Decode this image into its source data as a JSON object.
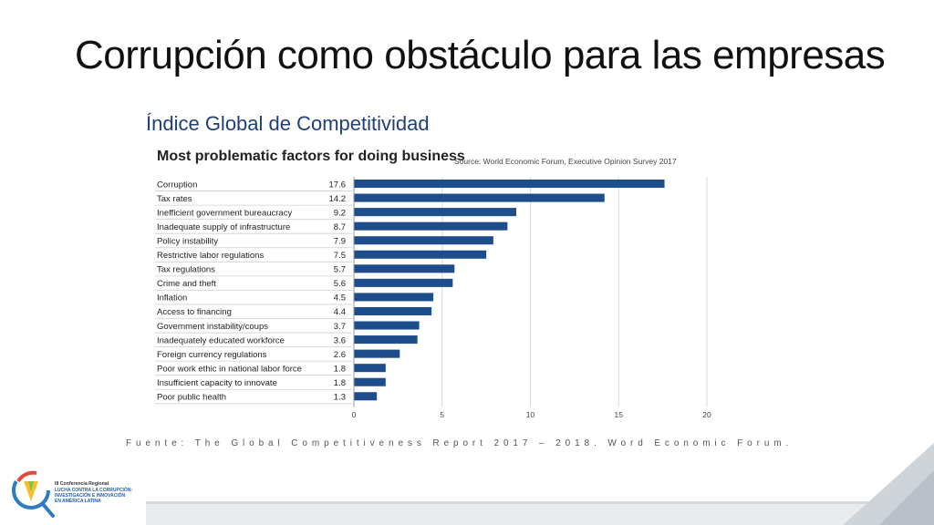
{
  "slide": {
    "title": "Corrupción como obstáculo para las empresas",
    "subtitle": "Índice Global de Competitividad",
    "figure_title": "Most problematic factors for doing business",
    "figure_source": "Source: World Economic Forum, Executive Opinion Survey 2017",
    "source_line": "Fuente: The Global Competitiveness Report 2017 – 2018. Word Economic Forum."
  },
  "logo": {
    "lines": [
      "III Conferencia Regional",
      "LUCHA CONTRA LA CORRUPCIÓN:",
      "INVESTIGACIÓN E INNOVACIÓN",
      "EN AMÉRICA LATINA"
    ]
  },
  "colors": {
    "bar": "#1e4d8c",
    "accent_blue": "#1f3f78",
    "grid": "#d9d9d9"
  },
  "chart_data": {
    "type": "bar",
    "orientation": "horizontal",
    "categories": [
      "Corruption",
      "Tax rates",
      "Inefficient government bureaucracy",
      "Inadequate supply of infrastructure",
      "Policy instability",
      "Restrictive labor regulations",
      "Tax regulations",
      "Crime and theft",
      "Inflation",
      "Access to financing",
      "Government instability/coups",
      "Inadequately educated workforce",
      "Foreign currency regulations",
      "Poor work ethic in national labor force",
      "Insufficient capacity to innovate",
      "Poor public health"
    ],
    "values": [
      17.6,
      14.2,
      9.2,
      8.7,
      7.9,
      7.5,
      5.7,
      5.6,
      4.5,
      4.4,
      3.7,
      3.6,
      2.6,
      1.8,
      1.8,
      1.3
    ],
    "value_labels": [
      "17.6",
      "14.2",
      "9.2",
      "8.7",
      "7.9",
      "7.5",
      "5.7",
      "5.6",
      "4.5",
      "4.4",
      "3.7",
      "3.6",
      "2.6",
      "1.8",
      "1.8",
      "1.3"
    ],
    "xlim": [
      0,
      20
    ],
    "xticks": [
      "0",
      "5",
      "10",
      "15",
      "20"
    ],
    "grid": true
  }
}
